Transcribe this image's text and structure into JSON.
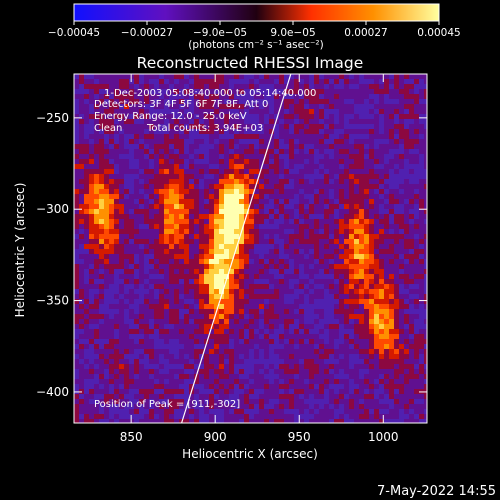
{
  "chart_data": {
    "type": "heatmap",
    "title": "Reconstructed RHESSI Image",
    "xlabel": "Heliocentric X (arcsec)",
    "ylabel": "Heliocentric Y (arcsec)",
    "xlim": [
      816,
      1026
    ],
    "ylim": [
      -417,
      -226
    ],
    "xticks": [
      850,
      900,
      950,
      1000
    ],
    "xtick_labels": [
      "850",
      "900",
      "950",
      "1000"
    ],
    "yticks": [
      -250,
      -300,
      -350,
      -400
    ],
    "ytick_labels": [
      "−250",
      "−300",
      "−350",
      "−400"
    ],
    "colorbar": {
      "ticks": [
        -0.00045,
        -0.00027,
        -9e-05,
        9e-05,
        0.00027,
        0.00045
      ],
      "tick_labels": [
        "−0.00045",
        "−0.00027",
        "−9.0e−05",
        "9.0e−05",
        "0.00027",
        "0.00045"
      ],
      "unit_label": "(photons cm⁻² s⁻¹ asec⁻²)",
      "colors": [
        "#1010ff",
        "#6010c0",
        "#ff4000",
        "#ff9000",
        "#ffffa0"
      ]
    },
    "annotations": {
      "time_range": "1-Dec-2003 05:08:40.000 to 05:14:40.000",
      "detectors": "Detectors: 3F 4F 5F 6F 7F 8F, Att 0",
      "energy_range": "Energy Range: 12.0 - 25.0 keV",
      "algorithm": "Clean",
      "total_counts": "Total counts: 3.94E+03",
      "peak": "Position of Peak = [911,-302]"
    },
    "limb_line": {
      "x": [
        880,
        945
      ],
      "y": [
        -417,
        -226
      ]
    },
    "bright_sources": [
      {
        "x": 911,
        "y": -302,
        "level": 1.0
      },
      {
        "x": 902,
        "y": -340,
        "level": 0.85
      },
      {
        "x": 832,
        "y": -300,
        "level": 0.6
      },
      {
        "x": 875,
        "y": -305,
        "level": 0.55
      },
      {
        "x": 985,
        "y": -320,
        "level": 0.6
      },
      {
        "x": 1000,
        "y": -360,
        "level": 0.55
      }
    ]
  },
  "footer": {
    "timestamp": "7-May-2022 14:55"
  }
}
